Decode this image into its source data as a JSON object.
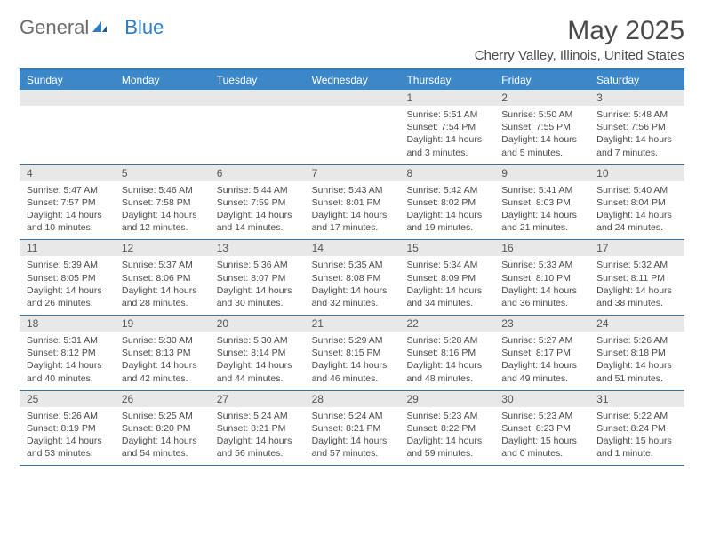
{
  "logo": {
    "general": "General",
    "blue": "Blue"
  },
  "title": "May 2025",
  "location": "Cherry Valley, Illinois, United States",
  "colors": {
    "header_bg": "#3b87c8",
    "header_text": "#ffffff",
    "border": "#3b6fa0",
    "daynum_bg": "#e8e8e8",
    "text": "#4a4a4a",
    "logo_blue": "#2e7cc1",
    "logo_gray": "#6b6b6b"
  },
  "weekdays": [
    "Sunday",
    "Monday",
    "Tuesday",
    "Wednesday",
    "Thursday",
    "Friday",
    "Saturday"
  ],
  "weeks": [
    [
      {
        "empty": true
      },
      {
        "empty": true
      },
      {
        "empty": true
      },
      {
        "empty": true
      },
      {
        "day": "1",
        "sunrise": "Sunrise: 5:51 AM",
        "sunset": "Sunset: 7:54 PM",
        "daylight": "Daylight: 14 hours and 3 minutes."
      },
      {
        "day": "2",
        "sunrise": "Sunrise: 5:50 AM",
        "sunset": "Sunset: 7:55 PM",
        "daylight": "Daylight: 14 hours and 5 minutes."
      },
      {
        "day": "3",
        "sunrise": "Sunrise: 5:48 AM",
        "sunset": "Sunset: 7:56 PM",
        "daylight": "Daylight: 14 hours and 7 minutes."
      }
    ],
    [
      {
        "day": "4",
        "sunrise": "Sunrise: 5:47 AM",
        "sunset": "Sunset: 7:57 PM",
        "daylight": "Daylight: 14 hours and 10 minutes."
      },
      {
        "day": "5",
        "sunrise": "Sunrise: 5:46 AM",
        "sunset": "Sunset: 7:58 PM",
        "daylight": "Daylight: 14 hours and 12 minutes."
      },
      {
        "day": "6",
        "sunrise": "Sunrise: 5:44 AM",
        "sunset": "Sunset: 7:59 PM",
        "daylight": "Daylight: 14 hours and 14 minutes."
      },
      {
        "day": "7",
        "sunrise": "Sunrise: 5:43 AM",
        "sunset": "Sunset: 8:01 PM",
        "daylight": "Daylight: 14 hours and 17 minutes."
      },
      {
        "day": "8",
        "sunrise": "Sunrise: 5:42 AM",
        "sunset": "Sunset: 8:02 PM",
        "daylight": "Daylight: 14 hours and 19 minutes."
      },
      {
        "day": "9",
        "sunrise": "Sunrise: 5:41 AM",
        "sunset": "Sunset: 8:03 PM",
        "daylight": "Daylight: 14 hours and 21 minutes."
      },
      {
        "day": "10",
        "sunrise": "Sunrise: 5:40 AM",
        "sunset": "Sunset: 8:04 PM",
        "daylight": "Daylight: 14 hours and 24 minutes."
      }
    ],
    [
      {
        "day": "11",
        "sunrise": "Sunrise: 5:39 AM",
        "sunset": "Sunset: 8:05 PM",
        "daylight": "Daylight: 14 hours and 26 minutes."
      },
      {
        "day": "12",
        "sunrise": "Sunrise: 5:37 AM",
        "sunset": "Sunset: 8:06 PM",
        "daylight": "Daylight: 14 hours and 28 minutes."
      },
      {
        "day": "13",
        "sunrise": "Sunrise: 5:36 AM",
        "sunset": "Sunset: 8:07 PM",
        "daylight": "Daylight: 14 hours and 30 minutes."
      },
      {
        "day": "14",
        "sunrise": "Sunrise: 5:35 AM",
        "sunset": "Sunset: 8:08 PM",
        "daylight": "Daylight: 14 hours and 32 minutes."
      },
      {
        "day": "15",
        "sunrise": "Sunrise: 5:34 AM",
        "sunset": "Sunset: 8:09 PM",
        "daylight": "Daylight: 14 hours and 34 minutes."
      },
      {
        "day": "16",
        "sunrise": "Sunrise: 5:33 AM",
        "sunset": "Sunset: 8:10 PM",
        "daylight": "Daylight: 14 hours and 36 minutes."
      },
      {
        "day": "17",
        "sunrise": "Sunrise: 5:32 AM",
        "sunset": "Sunset: 8:11 PM",
        "daylight": "Daylight: 14 hours and 38 minutes."
      }
    ],
    [
      {
        "day": "18",
        "sunrise": "Sunrise: 5:31 AM",
        "sunset": "Sunset: 8:12 PM",
        "daylight": "Daylight: 14 hours and 40 minutes."
      },
      {
        "day": "19",
        "sunrise": "Sunrise: 5:30 AM",
        "sunset": "Sunset: 8:13 PM",
        "daylight": "Daylight: 14 hours and 42 minutes."
      },
      {
        "day": "20",
        "sunrise": "Sunrise: 5:30 AM",
        "sunset": "Sunset: 8:14 PM",
        "daylight": "Daylight: 14 hours and 44 minutes."
      },
      {
        "day": "21",
        "sunrise": "Sunrise: 5:29 AM",
        "sunset": "Sunset: 8:15 PM",
        "daylight": "Daylight: 14 hours and 46 minutes."
      },
      {
        "day": "22",
        "sunrise": "Sunrise: 5:28 AM",
        "sunset": "Sunset: 8:16 PM",
        "daylight": "Daylight: 14 hours and 48 minutes."
      },
      {
        "day": "23",
        "sunrise": "Sunrise: 5:27 AM",
        "sunset": "Sunset: 8:17 PM",
        "daylight": "Daylight: 14 hours and 49 minutes."
      },
      {
        "day": "24",
        "sunrise": "Sunrise: 5:26 AM",
        "sunset": "Sunset: 8:18 PM",
        "daylight": "Daylight: 14 hours and 51 minutes."
      }
    ],
    [
      {
        "day": "25",
        "sunrise": "Sunrise: 5:26 AM",
        "sunset": "Sunset: 8:19 PM",
        "daylight": "Daylight: 14 hours and 53 minutes."
      },
      {
        "day": "26",
        "sunrise": "Sunrise: 5:25 AM",
        "sunset": "Sunset: 8:20 PM",
        "daylight": "Daylight: 14 hours and 54 minutes."
      },
      {
        "day": "27",
        "sunrise": "Sunrise: 5:24 AM",
        "sunset": "Sunset: 8:21 PM",
        "daylight": "Daylight: 14 hours and 56 minutes."
      },
      {
        "day": "28",
        "sunrise": "Sunrise: 5:24 AM",
        "sunset": "Sunset: 8:21 PM",
        "daylight": "Daylight: 14 hours and 57 minutes."
      },
      {
        "day": "29",
        "sunrise": "Sunrise: 5:23 AM",
        "sunset": "Sunset: 8:22 PM",
        "daylight": "Daylight: 14 hours and 59 minutes."
      },
      {
        "day": "30",
        "sunrise": "Sunrise: 5:23 AM",
        "sunset": "Sunset: 8:23 PM",
        "daylight": "Daylight: 15 hours and 0 minutes."
      },
      {
        "day": "31",
        "sunrise": "Sunrise: 5:22 AM",
        "sunset": "Sunset: 8:24 PM",
        "daylight": "Daylight: 15 hours and 1 minute."
      }
    ]
  ]
}
